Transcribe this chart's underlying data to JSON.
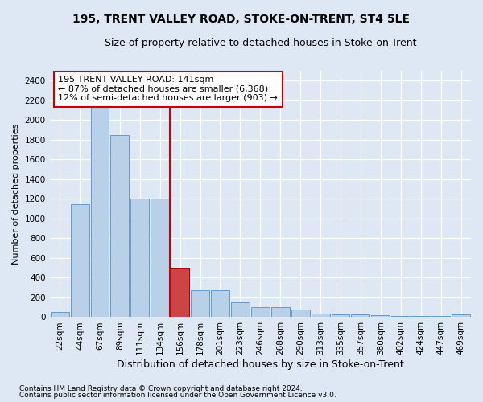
{
  "title": "195, TRENT VALLEY ROAD, STOKE-ON-TRENT, ST4 5LE",
  "subtitle": "Size of property relative to detached houses in Stoke-on-Trent",
  "xlabel": "Distribution of detached houses by size in Stoke-on-Trent",
  "ylabel": "Number of detached properties",
  "footnote1": "Contains HM Land Registry data © Crown copyright and database right 2024.",
  "footnote2": "Contains public sector information licensed under the Open Government Licence v3.0.",
  "categories": [
    "22sqm",
    "44sqm",
    "67sqm",
    "89sqm",
    "111sqm",
    "134sqm",
    "156sqm",
    "178sqm",
    "201sqm",
    "223sqm",
    "246sqm",
    "268sqm",
    "290sqm",
    "313sqm",
    "335sqm",
    "357sqm",
    "380sqm",
    "402sqm",
    "424sqm",
    "447sqm",
    "469sqm"
  ],
  "values": [
    50,
    1150,
    2200,
    1850,
    1200,
    1200,
    500,
    270,
    270,
    150,
    105,
    105,
    75,
    35,
    30,
    25,
    20,
    15,
    10,
    10,
    30
  ],
  "highlight_index": 6,
  "bar_color": "#b8d0e8",
  "bar_edge_color": "#6699cc",
  "highlight_bar_color": "#cc4444",
  "highlight_bar_edge_color": "#aa0000",
  "vline_color": "#cc0000",
  "vline_x": 5.5,
  "annotation_text": "195 TRENT VALLEY ROAD: 141sqm\n← 87% of detached houses are smaller (6,368)\n12% of semi-detached houses are larger (903) →",
  "annotation_box_color": "#ffffff",
  "annotation_box_edge_color": "#cc0000",
  "ylim": [
    0,
    2500
  ],
  "yticks": [
    0,
    200,
    400,
    600,
    800,
    1000,
    1200,
    1400,
    1600,
    1800,
    2000,
    2200,
    2400
  ],
  "background_color": "#dde8f4",
  "plot_bg_color": "#dde8f4",
  "title_fontsize": 10,
  "subtitle_fontsize": 9,
  "xlabel_fontsize": 9,
  "ylabel_fontsize": 8,
  "tick_fontsize": 7.5,
  "annotation_fontsize": 8
}
